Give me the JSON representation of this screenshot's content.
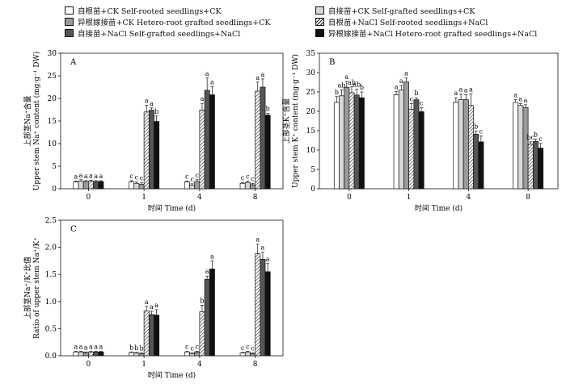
{
  "legend": [
    {
      "label": "自根苗+CK  Self-rooted seedlings+CK",
      "fill": "white"
    },
    {
      "label": "自接苗+CK  Self-grafted seedlings+CK",
      "fill": "lightgray"
    },
    {
      "label": "异根嫁接苗+CK  Hetero-root grafted seedlings+CK",
      "fill": "gray"
    },
    {
      "label": "自根苗+NaCl  Self-rooted seedlings+NaCl",
      "fill": "hatch"
    },
    {
      "label": "自接苗+NaCl  Self-grafted seedlings+NaCl",
      "fill": "darkgray"
    },
    {
      "label": "异根嫁接苗+NaCl  Hetero-root grafted seedlings+NaCl",
      "fill": "black"
    }
  ],
  "colors": {
    "white": "#ffffff",
    "lightgray": "#d8d8d8",
    "gray": "#9a9a9a",
    "darkgray": "#555555",
    "black": "#111111",
    "hatch": "hatch"
  },
  "chart_data": [
    {
      "panel": "A",
      "type": "bar",
      "categories": [
        "0",
        "1",
        "4",
        "8"
      ],
      "xlabel": "时间 Time (d)",
      "ylabel_cn": "上部茎Na⁺含量",
      "ylabel_en": "Upper stem Na⁺ content (mg·g⁻¹ DW)",
      "ylim": [
        0,
        30
      ],
      "yticks": [
        "0",
        "5",
        "10",
        "15",
        "20",
        "25",
        "30"
      ],
      "series": [
        {
          "fill": "white",
          "values": [
            1.5,
            1.5,
            1.5,
            1.2
          ],
          "errors": [
            0.2,
            0.3,
            0.2,
            0.2
          ],
          "letters": [
            "a",
            "c",
            "c",
            "c"
          ]
        },
        {
          "fill": "lightgray",
          "values": [
            1.7,
            1.2,
            0.8,
            1.4
          ],
          "errors": [
            0.3,
            0.3,
            0.3,
            0.3
          ],
          "letters": [
            "a",
            "c",
            "c",
            "c"
          ]
        },
        {
          "fill": "gray",
          "values": [
            1.6,
            1.0,
            1.6,
            0.9
          ],
          "errors": [
            0.2,
            0.3,
            0.4,
            0.3
          ],
          "letters": [
            "a",
            "c",
            "c",
            "c"
          ]
        },
        {
          "fill": "hatch",
          "values": [
            1.7,
            17.0,
            17.4,
            21.6
          ],
          "errors": [
            0.2,
            1.5,
            1.5,
            2.0
          ],
          "letters": [
            "a",
            "a",
            "a",
            "a"
          ]
        },
        {
          "fill": "darkgray",
          "values": [
            1.6,
            17.4,
            21.8,
            22.5
          ],
          "errors": [
            0.2,
            0.5,
            2.7,
            1.8
          ],
          "letters": [
            "a",
            "a",
            "a",
            "a"
          ]
        },
        {
          "fill": "black",
          "values": [
            1.6,
            14.9,
            20.8,
            16.3
          ],
          "errors": [
            0.2,
            1.2,
            1.8,
            0.4
          ],
          "letters": [
            "a",
            "b",
            "a",
            "b"
          ]
        }
      ]
    },
    {
      "panel": "B",
      "type": "bar",
      "categories": [
        "0",
        "1",
        "4",
        "8"
      ],
      "xlabel": "时间 Time (d)",
      "ylabel_cn": "上部茎K⁺含量",
      "ylabel_en": "Upper stem K⁺ content (mg·g⁻¹ DW)",
      "ylim": [
        0,
        35
      ],
      "yticks": [
        "0",
        "5",
        "10",
        "15",
        "20",
        "25",
        "30",
        "35"
      ],
      "series": [
        {
          "fill": "white",
          "values": [
            22.3,
            24.3,
            22.3,
            22.3
          ],
          "errors": [
            1.5,
            0.8,
            1.2,
            0.7
          ],
          "letters": [
            "b",
            "a",
            "a",
            "a"
          ]
        },
        {
          "fill": "lightgray",
          "values": [
            24.0,
            25.5,
            23.0,
            21.5
          ],
          "errors": [
            1.5,
            1.2,
            1.5,
            0.5
          ],
          "letters": [
            "ab",
            "a",
            "a",
            "a"
          ]
        },
        {
          "fill": "gray",
          "values": [
            26.2,
            27.6,
            23.0,
            21.0
          ],
          "errors": [
            1.5,
            1.0,
            1.3,
            0.7
          ],
          "letters": [
            "a",
            "a",
            "a",
            "a"
          ]
        },
        {
          "fill": "hatch",
          "values": [
            24.8,
            20.5,
            21.5,
            11.5
          ],
          "errors": [
            1.5,
            1.5,
            3.0,
            0.6
          ],
          "letters": [
            "ab",
            "c",
            "a",
            "bc"
          ]
        },
        {
          "fill": "darkgray",
          "values": [
            24.2,
            23.0,
            14.1,
            12.2
          ],
          "errors": [
            1.5,
            0.5,
            0.8,
            0.6
          ],
          "letters": [
            "ab",
            "b",
            "b",
            "b"
          ]
        },
        {
          "fill": "black",
          "values": [
            23.5,
            19.9,
            12.1,
            10.5
          ],
          "errors": [
            1.5,
            1.0,
            1.5,
            1.2
          ],
          "letters": [
            "b",
            "c",
            "c",
            "c"
          ]
        }
      ]
    },
    {
      "panel": "C",
      "type": "bar",
      "categories": [
        "0",
        "1",
        "4",
        "8"
      ],
      "xlabel": "时间 Time (d)",
      "ylabel_cn": "上部茎Na⁺/K⁺比值",
      "ylabel_en": "Ratio of upper stem Na⁺/K⁺",
      "ylim": [
        0,
        2.5
      ],
      "yticks": [
        "0.0",
        "0.5",
        "1.0",
        "1.5",
        "2.0",
        "2.5"
      ],
      "series": [
        {
          "fill": "white",
          "values": [
            0.07,
            0.06,
            0.07,
            0.05
          ],
          "errors": [
            0.01,
            0.01,
            0.01,
            0.01
          ],
          "letters": [
            "a",
            "b",
            "c",
            "c"
          ]
        },
        {
          "fill": "lightgray",
          "values": [
            0.07,
            0.05,
            0.04,
            0.07
          ],
          "errors": [
            0.01,
            0.01,
            0.01,
            0.01
          ],
          "letters": [
            "a",
            "b",
            "c",
            "c"
          ]
        },
        {
          "fill": "gray",
          "values": [
            0.06,
            0.04,
            0.07,
            0.04
          ],
          "errors": [
            0.01,
            0.01,
            0.01,
            0.01
          ],
          "letters": [
            "a",
            "b",
            "c",
            "c"
          ]
        },
        {
          "fill": "hatch",
          "values": [
            0.07,
            0.83,
            0.81,
            1.88
          ],
          "errors": [
            0.01,
            0.08,
            0.12,
            0.18
          ],
          "letters": [
            "a",
            "a",
            "b",
            "a"
          ]
        },
        {
          "fill": "darkgray",
          "values": [
            0.07,
            0.76,
            1.41,
            1.78
          ],
          "errors": [
            0.01,
            0.06,
            0.06,
            0.13
          ],
          "letters": [
            "a",
            "a",
            "a",
            "a"
          ]
        },
        {
          "fill": "black",
          "values": [
            0.07,
            0.75,
            1.6,
            1.55
          ],
          "errors": [
            0.01,
            0.1,
            0.15,
            0.15
          ],
          "letters": [
            "a",
            "a",
            "a",
            "a"
          ]
        }
      ]
    }
  ]
}
